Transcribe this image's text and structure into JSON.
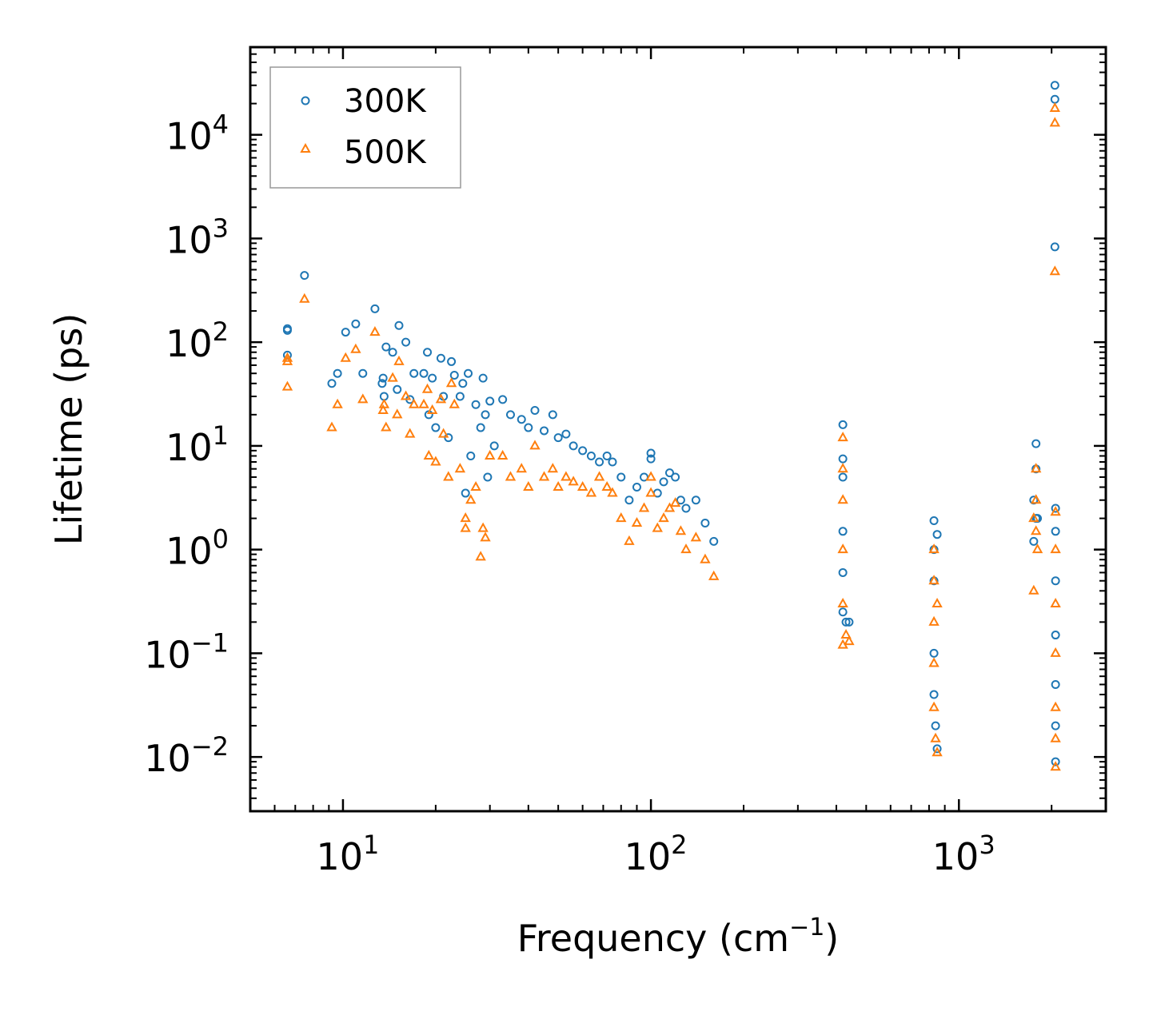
{
  "chart_data": {
    "type": "scatter",
    "xscale": "log",
    "yscale": "log",
    "xlim": [
      5,
      3000
    ],
    "ylim": [
      0.003,
      70000
    ],
    "xlabel": {
      "main": "Frequency (cm",
      "sup": "−1",
      "close": ")"
    },
    "ylabel": "Lifetime (ps)",
    "xticks": [
      {
        "value": 10,
        "base": "10",
        "exp": "1"
      },
      {
        "value": 100,
        "base": "10",
        "exp": "2"
      },
      {
        "value": 1000,
        "base": "10",
        "exp": "3"
      }
    ],
    "yticks": [
      {
        "value": 0.01,
        "base": "10",
        "exp": "−2"
      },
      {
        "value": 0.1,
        "base": "10",
        "exp": "−1"
      },
      {
        "value": 1,
        "base": "10",
        "exp": "0"
      },
      {
        "value": 10,
        "base": "10",
        "exp": "1"
      },
      {
        "value": 100,
        "base": "10",
        "exp": "2"
      },
      {
        "value": 1000,
        "base": "10",
        "exp": "3"
      },
      {
        "value": 10000,
        "base": "10",
        "exp": "4"
      }
    ],
    "legend": {
      "placement": "top-left"
    },
    "series": [
      {
        "name": "300K",
        "marker": "circle",
        "color": "#1f77b4",
        "points": [
          [
            6.6,
            130
          ],
          [
            6.6,
            135
          ],
          [
            6.6,
            75
          ],
          [
            7.5,
            440
          ],
          [
            9.2,
            40
          ],
          [
            9.6,
            50
          ],
          [
            10.2,
            125
          ],
          [
            11,
            150
          ],
          [
            11.6,
            50
          ],
          [
            12.7,
            210
          ],
          [
            13.4,
            40
          ],
          [
            13.5,
            45
          ],
          [
            13.6,
            30
          ],
          [
            13.8,
            90
          ],
          [
            14.5,
            80
          ],
          [
            15,
            35
          ],
          [
            15.2,
            145
          ],
          [
            16,
            100
          ],
          [
            16.5,
            28
          ],
          [
            17,
            50
          ],
          [
            18.3,
            50
          ],
          [
            18.8,
            80
          ],
          [
            19,
            20
          ],
          [
            19.5,
            45
          ],
          [
            20,
            15
          ],
          [
            20.8,
            70
          ],
          [
            21.2,
            30
          ],
          [
            22,
            12
          ],
          [
            22.5,
            65
          ],
          [
            23,
            48
          ],
          [
            24,
            30
          ],
          [
            24.5,
            40
          ],
          [
            25,
            3.5
          ],
          [
            25.5,
            50
          ],
          [
            26,
            8
          ],
          [
            27,
            25
          ],
          [
            28,
            15
          ],
          [
            28.5,
            45
          ],
          [
            29,
            20
          ],
          [
            29.5,
            5
          ],
          [
            30,
            27
          ],
          [
            31,
            10
          ],
          [
            33,
            28
          ],
          [
            35,
            20
          ],
          [
            38,
            18
          ],
          [
            40,
            15
          ],
          [
            42,
            22
          ],
          [
            45,
            14
          ],
          [
            48,
            20
          ],
          [
            50,
            12
          ],
          [
            53,
            13
          ],
          [
            56,
            10
          ],
          [
            60,
            9
          ],
          [
            64,
            8
          ],
          [
            68,
            7
          ],
          [
            72,
            8
          ],
          [
            75,
            7
          ],
          [
            80,
            5
          ],
          [
            85,
            3
          ],
          [
            90,
            4
          ],
          [
            95,
            5
          ],
          [
            100,
            8.5
          ],
          [
            100,
            7.5
          ],
          [
            105,
            3.5
          ],
          [
            110,
            4.5
          ],
          [
            115,
            5.5
          ],
          [
            120,
            5
          ],
          [
            125,
            3
          ],
          [
            130,
            2.5
          ],
          [
            140,
            3
          ],
          [
            150,
            1.8
          ],
          [
            160,
            1.2
          ],
          [
            420,
            16
          ],
          [
            420,
            7.5
          ],
          [
            420,
            5
          ],
          [
            420,
            1.5
          ],
          [
            420,
            0.6
          ],
          [
            420,
            0.25
          ],
          [
            430,
            0.2
          ],
          [
            440,
            0.2
          ],
          [
            830,
            1.9
          ],
          [
            830,
            1
          ],
          [
            830,
            0.5
          ],
          [
            830,
            0.1
          ],
          [
            830,
            0.04
          ],
          [
            840,
            0.02
          ],
          [
            850,
            0.012
          ],
          [
            850,
            1.4
          ],
          [
            1750,
            3
          ],
          [
            1750,
            1.2
          ],
          [
            1780,
            10.5
          ],
          [
            1780,
            6
          ],
          [
            1780,
            2
          ],
          [
            1800,
            2
          ],
          [
            2050,
            30000
          ],
          [
            2050,
            22000
          ],
          [
            2050,
            830
          ],
          [
            2060,
            2.5
          ],
          [
            2060,
            1.5
          ],
          [
            2060,
            0.5
          ],
          [
            2060,
            0.15
          ],
          [
            2060,
            0.05
          ],
          [
            2060,
            0.02
          ],
          [
            2060,
            0.009
          ]
        ]
      },
      {
        "name": "500K",
        "marker": "triangle",
        "color": "#ff7f0e",
        "points": [
          [
            6.6,
            65
          ],
          [
            6.6,
            70
          ],
          [
            6.6,
            37
          ],
          [
            7.5,
            260
          ],
          [
            9.2,
            15
          ],
          [
            9.6,
            25
          ],
          [
            10.2,
            70
          ],
          [
            11,
            85
          ],
          [
            11.6,
            28
          ],
          [
            12.7,
            125
          ],
          [
            13.5,
            22
          ],
          [
            13.6,
            25
          ],
          [
            13.8,
            15
          ],
          [
            14.5,
            45
          ],
          [
            15,
            20
          ],
          [
            15.2,
            65
          ],
          [
            16,
            30
          ],
          [
            16.5,
            13
          ],
          [
            17,
            25
          ],
          [
            18.3,
            25
          ],
          [
            18.8,
            35
          ],
          [
            19,
            8
          ],
          [
            19.5,
            22
          ],
          [
            20,
            7
          ],
          [
            20.8,
            28
          ],
          [
            21.2,
            13
          ],
          [
            22,
            5
          ],
          [
            22.5,
            40
          ],
          [
            23,
            25
          ],
          [
            24,
            6
          ],
          [
            25,
            2
          ],
          [
            25,
            1.6
          ],
          [
            26,
            3
          ],
          [
            27,
            4
          ],
          [
            28,
            0.85
          ],
          [
            28.5,
            1.6
          ],
          [
            29,
            1.3
          ],
          [
            30,
            8
          ],
          [
            33,
            8
          ],
          [
            35,
            5
          ],
          [
            38,
            6
          ],
          [
            40,
            4
          ],
          [
            42,
            10
          ],
          [
            45,
            5
          ],
          [
            48,
            6
          ],
          [
            50,
            4
          ],
          [
            53,
            5
          ],
          [
            56,
            4.5
          ],
          [
            60,
            4
          ],
          [
            64,
            3.5
          ],
          [
            68,
            5
          ],
          [
            72,
            4
          ],
          [
            75,
            3.5
          ],
          [
            80,
            2
          ],
          [
            85,
            1.2
          ],
          [
            90,
            1.8
          ],
          [
            95,
            2.5
          ],
          [
            100,
            5
          ],
          [
            100,
            3.5
          ],
          [
            105,
            1.6
          ],
          [
            110,
            2
          ],
          [
            115,
            2.5
          ],
          [
            120,
            2.8
          ],
          [
            125,
            1.5
          ],
          [
            130,
            1
          ],
          [
            140,
            1.3
          ],
          [
            150,
            0.8
          ],
          [
            160,
            0.55
          ],
          [
            420,
            12
          ],
          [
            420,
            6
          ],
          [
            420,
            3
          ],
          [
            420,
            1
          ],
          [
            420,
            0.3
          ],
          [
            420,
            0.12
          ],
          [
            430,
            0.15
          ],
          [
            440,
            0.13
          ],
          [
            830,
            1
          ],
          [
            830,
            0.5
          ],
          [
            830,
            0.2
          ],
          [
            830,
            0.08
          ],
          [
            830,
            0.03
          ],
          [
            840,
            0.015
          ],
          [
            850,
            0.011
          ],
          [
            850,
            0.3
          ],
          [
            1750,
            2
          ],
          [
            1750,
            0.4
          ],
          [
            1780,
            6
          ],
          [
            1780,
            3
          ],
          [
            1780,
            1.5
          ],
          [
            1800,
            1
          ],
          [
            2050,
            18000
          ],
          [
            2050,
            13000
          ],
          [
            2050,
            480
          ],
          [
            2060,
            2.3
          ],
          [
            2060,
            1
          ],
          [
            2060,
            0.3
          ],
          [
            2060,
            0.1
          ],
          [
            2060,
            0.03
          ],
          [
            2060,
            0.015
          ],
          [
            2060,
            0.008
          ]
        ]
      }
    ]
  }
}
